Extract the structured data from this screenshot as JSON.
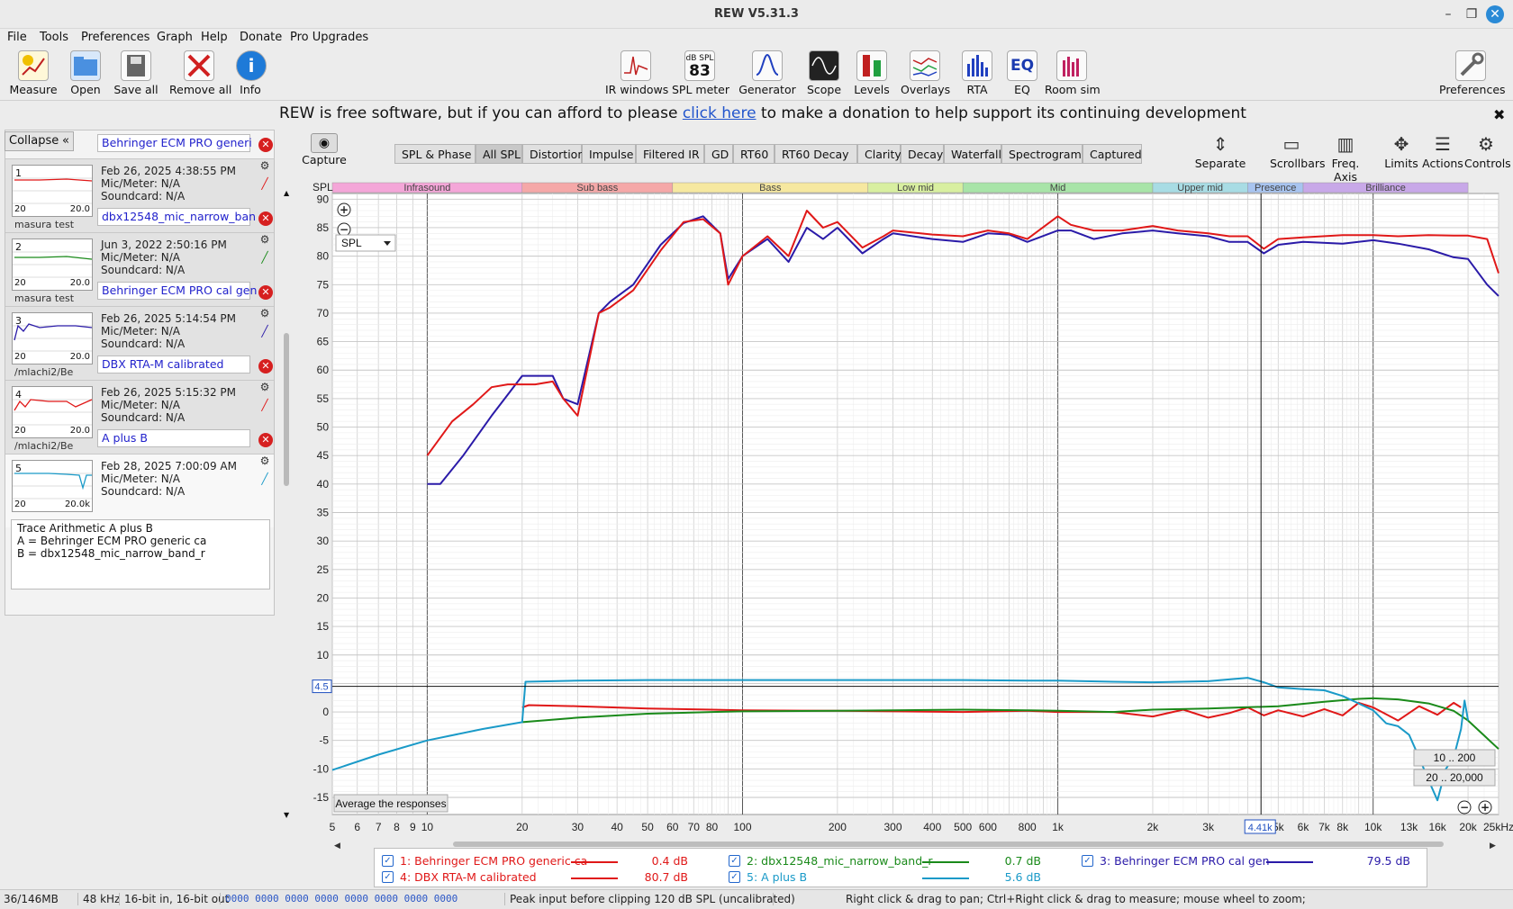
{
  "window": {
    "title": "REW V5.31.3"
  },
  "menu": [
    "File",
    "Tools",
    "Preferences",
    "Graph",
    "Help",
    "Donate",
    "Pro Upgrades"
  ],
  "toolbar": {
    "left": [
      "Measure",
      "Open",
      "Save all",
      "Remove all",
      "Info"
    ],
    "center": [
      "IR windows",
      "SPL meter",
      "Generator",
      "Scope",
      "Levels",
      "Overlays",
      "RTA",
      "EQ",
      "Room sim"
    ],
    "right": [
      "Preferences"
    ],
    "spl_meter_reading": "83",
    "spl_meter_unit": "dB SPL"
  },
  "donation": {
    "before": "REW is free software, but if you can afford to please",
    "link": "click here",
    "after": "to make a donation to help support its continuing development"
  },
  "left_panel": {
    "collapse_label": "Collapse",
    "collapse_icon": "«",
    "measurements": [
      {
        "num": "1",
        "name": "Behringer ECM PRO  generi",
        "date": "Feb 26, 2025 4:38:55 PM",
        "mic": "Mic/Meter: N/A",
        "sound": "Soundcard: N/A",
        "thumb_lo": "20",
        "thumb_hi": "20.0",
        "note": "masura test",
        "color": "#e01818"
      },
      {
        "num": "2",
        "name": "dbx12548_mic_narrow_ban",
        "date": "Jun 3, 2022 2:50:16 PM",
        "mic": "Mic/Meter: N/A",
        "sound": "Soundcard: N/A",
        "thumb_lo": "20",
        "thumb_hi": "20.0",
        "note": "masura test",
        "color": "#1a8a1a"
      },
      {
        "num": "3",
        "name": "Behringer ECM PRO cal gen",
        "date": "Feb 26, 2025 5:14:54 PM",
        "mic": "Mic/Meter: N/A",
        "sound": "Soundcard: N/A",
        "thumb_lo": "20",
        "thumb_hi": "20.0",
        "note": "/mlachi2/Be",
        "color": "#2a1aa8"
      },
      {
        "num": "4",
        "name": "DBX RTA-M calibrated",
        "date": "Feb 26, 2025 5:15:32 PM",
        "mic": "Mic/Meter: N/A",
        "sound": "Soundcard: N/A",
        "thumb_lo": "20",
        "thumb_hi": "20.0",
        "note": "/mlachi2/Be",
        "color": "#e01818"
      },
      {
        "num": "5",
        "name": "A plus B",
        "date": "Feb 28, 2025 7:00:09 AM",
        "mic": "Mic/Meter: N/A",
        "sound": "Soundcard: N/A",
        "thumb_lo": "20",
        "thumb_hi": "20.0k",
        "note": "",
        "color": "#1a9ac8"
      }
    ],
    "arithmetic": [
      "Trace Arithmetic A plus B",
      "A = Behringer ECM PRO  generic ca",
      "B = dbx12548_mic_narrow_band_r"
    ]
  },
  "graph": {
    "capture_label": "Capture",
    "tabs": [
      "SPL & Phase",
      "All SPL",
      "Distortion",
      "Impulse",
      "Filtered IR",
      "GD",
      "RT60",
      "RT60 Decay",
      "Clarity",
      "Decay",
      "Waterfall",
      "Spectrogram",
      "Captured"
    ],
    "active_tab": "All SPL",
    "right_controls": [
      "Separate",
      "Scrollbars",
      "Freq. Axis",
      "Limits",
      "Actions",
      "Controls"
    ],
    "y_axis_label": "SPL",
    "y_select": "SPL",
    "cursor_y": "4.5",
    "cursor_x": "4.41k",
    "average_button": "Average the responses",
    "range_buttons": [
      "10 .. 200",
      "20 .. 20,000"
    ],
    "bands": [
      "Infrasound",
      "Sub bass",
      "Bass",
      "Low mid",
      "Mid",
      "Upper mid",
      "Presence",
      "Brilliance"
    ],
    "x_ticks": [
      "5",
      "6",
      "7",
      "8",
      "9",
      "10",
      "20",
      "30",
      "40",
      "50",
      "60",
      "70",
      "80",
      "100",
      "200",
      "300",
      "400",
      "500",
      "600",
      "800",
      "1k",
      "2k",
      "3k",
      "5k",
      "6k",
      "7k",
      "8k",
      "10k",
      "13k",
      "16k",
      "20k",
      "25kHz"
    ],
    "y_ticks": [
      "90",
      "85",
      "80",
      "75",
      "70",
      "65",
      "60",
      "55",
      "50",
      "45",
      "40",
      "35",
      "30",
      "25",
      "20",
      "15",
      "10",
      "5",
      "0",
      "-5",
      "-10",
      "-15"
    ]
  },
  "chart_data": {
    "type": "line",
    "xlabel": "",
    "ylabel": "SPL",
    "x_scale": "log",
    "xlim": [
      5,
      25000
    ],
    "ylim": [
      -18,
      91
    ],
    "series": [
      {
        "name": "1: Behringer ECM PRO  generic ca",
        "color": "#e01818",
        "x": [
          20,
          21,
          30,
          50,
          80,
          100,
          200,
          300,
          500,
          800,
          1000,
          1500,
          2000,
          2500,
          3000,
          3500,
          4000,
          4500,
          5000,
          6000,
          7000,
          8000,
          9000,
          10000,
          12000,
          14000,
          16000,
          18000,
          19000
        ],
        "y": [
          0.8,
          1.2,
          1.0,
          0.6,
          0.4,
          0.3,
          0.2,
          0.1,
          0.0,
          0.2,
          0.0,
          0.0,
          -0.8,
          0.4,
          -1.0,
          -0.2,
          0.8,
          -0.6,
          0.3,
          -0.8,
          0.5,
          -0.6,
          1.6,
          0.8,
          -1.5,
          1.0,
          -0.5,
          1.6,
          0.8
        ]
      },
      {
        "name": "2: dbx12548_mic_narrow_band_r",
        "color": "#1a8a1a",
        "x": [
          20,
          30,
          50,
          80,
          100,
          200,
          300,
          500,
          800,
          1000,
          1500,
          2000,
          3000,
          5000,
          7000,
          9000,
          10000,
          12000,
          15000,
          18000,
          20000,
          25000
        ],
        "y": [
          -1.8,
          -1.0,
          -0.3,
          0.0,
          0.1,
          0.2,
          0.3,
          0.4,
          0.3,
          0.2,
          0.0,
          0.4,
          0.6,
          1.0,
          1.8,
          2.3,
          2.4,
          2.2,
          1.5,
          0.2,
          -1.5,
          -6.5
        ]
      },
      {
        "name": "3: Behringer ECM PRO cal gen",
        "color": "#2a1aa8",
        "x": [
          10,
          11,
          13,
          16,
          20,
          25,
          27,
          30,
          35,
          38,
          45,
          55,
          65,
          75,
          85,
          90,
          100,
          120,
          140,
          160,
          180,
          200,
          240,
          280,
          300,
          400,
          500,
          600,
          700,
          800,
          1000,
          1100,
          1300,
          1600,
          2000,
          2400,
          3000,
          3500,
          4000,
          4500,
          5000,
          6000,
          8000,
          10000,
          12000,
          15000,
          18000,
          20000,
          23000,
          25000
        ],
        "y": [
          40,
          40,
          45,
          52,
          59,
          59,
          55,
          54,
          70,
          72,
          75,
          82,
          85.8,
          87,
          84,
          76,
          80,
          83,
          79,
          85,
          83,
          85,
          80.5,
          83,
          84,
          83,
          82.5,
          84,
          83.8,
          82.5,
          84.5,
          84.5,
          83,
          84,
          84.5,
          84,
          83.5,
          82.5,
          82.5,
          80.5,
          82,
          82.5,
          82.2,
          82.8,
          82.2,
          81.2,
          79.8,
          79.5,
          75,
          73
        ]
      },
      {
        "name": "4: DBX RTA-M calibrated",
        "color": "#e01818",
        "x": [
          10,
          12,
          14,
          16,
          18,
          20,
          22,
          25,
          27,
          30,
          35,
          38,
          45,
          55,
          65,
          75,
          85,
          90,
          100,
          120,
          140,
          160,
          180,
          200,
          240,
          280,
          300,
          400,
          500,
          600,
          700,
          800,
          1000,
          1100,
          1300,
          1600,
          2000,
          2400,
          3000,
          3500,
          4000,
          4500,
          5000,
          6000,
          8000,
          10000,
          12000,
          15000,
          18000,
          20000,
          23000,
          25000
        ],
        "y": [
          45,
          51,
          54,
          57,
          57.5,
          57.5,
          57.5,
          58,
          55,
          52,
          70,
          71,
          74,
          81,
          86,
          86.5,
          84,
          75,
          80,
          83.5,
          80,
          88,
          85,
          86,
          81.5,
          83.5,
          84.5,
          83.8,
          83.5,
          84.5,
          84,
          83,
          87,
          85.5,
          84.5,
          84.5,
          85.3,
          84.5,
          84,
          83.5,
          83.5,
          81.3,
          83,
          83.3,
          83.7,
          83.7,
          83.5,
          83.7,
          83.6,
          83.6,
          83,
          77
        ]
      },
      {
        "name": "5: A plus B",
        "color": "#1a9ac8",
        "x": [
          5,
          7,
          10,
          15,
          20,
          20.5,
          30,
          50,
          80,
          100,
          200,
          300,
          500,
          800,
          1000,
          1500,
          2000,
          3000,
          4000,
          4500,
          5000,
          6000,
          7000,
          8000,
          9000,
          10000,
          11000,
          12000,
          13000,
          14000,
          15000,
          16000,
          17000,
          18000,
          19000,
          19500,
          20000
        ],
        "y": [
          -10.2,
          -7.5,
          -5.0,
          -3.0,
          -1.8,
          5.3,
          5.5,
          5.6,
          5.6,
          5.6,
          5.6,
          5.6,
          5.6,
          5.5,
          5.5,
          5.3,
          5.2,
          5.4,
          6.0,
          5.2,
          4.3,
          4.0,
          3.8,
          2.8,
          1.5,
          0.3,
          -2.0,
          -2.5,
          -4.0,
          -8.0,
          -12,
          -15.5,
          -10.0,
          -8.0,
          -3.0,
          2.0,
          -1.5
        ]
      }
    ]
  },
  "legend": [
    {
      "label": "1: Behringer ECM PRO  generic ca",
      "value": "0.4 dB",
      "color": "#e01818"
    },
    {
      "label": "2: dbx12548_mic_narrow_band_r",
      "value": "0.7 dB",
      "color": "#1a8a1a"
    },
    {
      "label": "3: Behringer ECM PRO cal gen",
      "value": "79.5 dB",
      "color": "#2a1aa8"
    },
    {
      "label": "4: DBX RTA-M calibrated",
      "value": "80.7 dB",
      "color": "#e01818"
    },
    {
      "label": "5: A plus B",
      "value": "5.6 dB",
      "color": "#1a9ac8"
    }
  ],
  "status": {
    "memory": "36/146MB",
    "rate": "48 kHz",
    "bits": "16-bit in, 16-bit out",
    "levels": "0000 0000   0000 0000   0000 0000   0000 0000",
    "clip": "Peak input before clipping 120 dB SPL (uncalibrated)",
    "hint": "Right click & drag to pan; Ctrl+Right click & drag to measure; mouse wheel to zoom;"
  }
}
